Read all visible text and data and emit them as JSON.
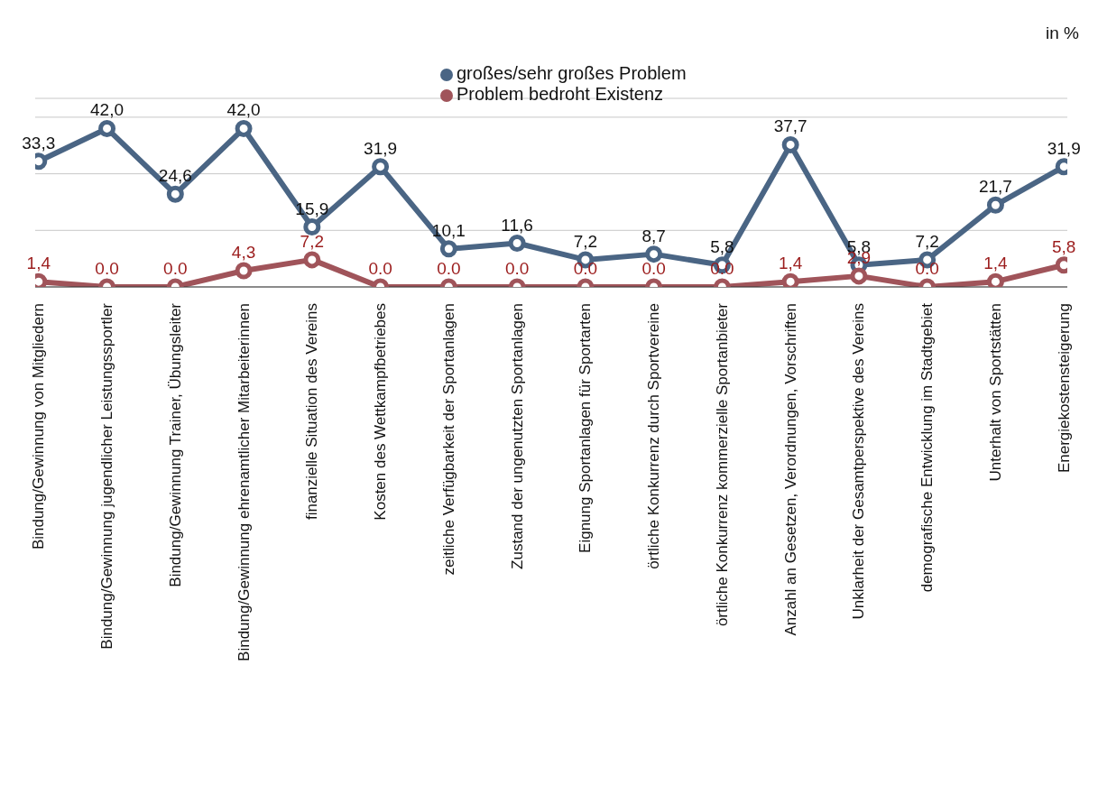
{
  "chart_data": {
    "type": "line",
    "ylabel": "in %",
    "categories": [
      "Bindung/Gewinnung von Mitgliedern",
      "Bindung/Gewinnung jugendlicher Leistungssportler",
      "Bindung/Gewinnung Trainer, Übungsleiter",
      "Bindung/Gewinnung ehrenamtlicher Mitarbeiterinnen",
      "finanzielle Situation des Vereins",
      "Kosten des Wettkampfbetriebes",
      "zeitliche Verfügbarkeit der Sportanlagen",
      "Zustand der ungenutzten Sportanlagen",
      "Eignung Sportanlagen für Sportarten",
      "örtliche Konkurrenz durch Sportvereine",
      "örtliche Konkurrenz kommerzielle Sportanbieter",
      "Anzahl an Gesetzen, Verordnungen, Vorschriften",
      "Unklarheit der Gesamtperspektive des Vereins",
      "demografische Entwicklung im Stadtgebiet",
      "Unterhalt von Sportstätten",
      "Energiekostensteigerung"
    ],
    "series": [
      {
        "name": "großes/sehr großes Problem",
        "color": "#4a6584",
        "values": [
          33.3,
          42.0,
          24.6,
          42.0,
          15.9,
          31.9,
          10.1,
          11.6,
          7.2,
          8.7,
          5.8,
          37.7,
          5.8,
          7.2,
          21.7,
          31.9
        ],
        "value_labels": [
          "33,3",
          "42,0",
          "24,6",
          "42,0",
          "15,9",
          "31,9",
          "10,1",
          "11,6",
          "7,2",
          "8,7",
          "5,8",
          "37,7",
          "5,8",
          "7,2",
          "21,7",
          "31,9"
        ]
      },
      {
        "name": "Problem bedroht Existenz",
        "color": "#a0545a",
        "values": [
          1.4,
          0.0,
          0.0,
          4.3,
          7.2,
          0.0,
          0.0,
          0.0,
          0.0,
          0.0,
          0.0,
          1.4,
          2.9,
          0.0,
          1.4,
          5.8
        ],
        "value_labels": [
          "1,4",
          "0.0",
          "0.0",
          "4,3",
          "7,2",
          "0.0",
          "0.0",
          "0.0",
          "0.0",
          "0.0",
          "0.0",
          "1,4",
          "2,9",
          "0.0",
          "1,4",
          "5,8"
        ]
      }
    ],
    "ylim": [
      0,
      50
    ],
    "grid": "y",
    "legend": "top",
    "tick_labels": "x",
    "marker": "circle",
    "line_style": "solid"
  }
}
